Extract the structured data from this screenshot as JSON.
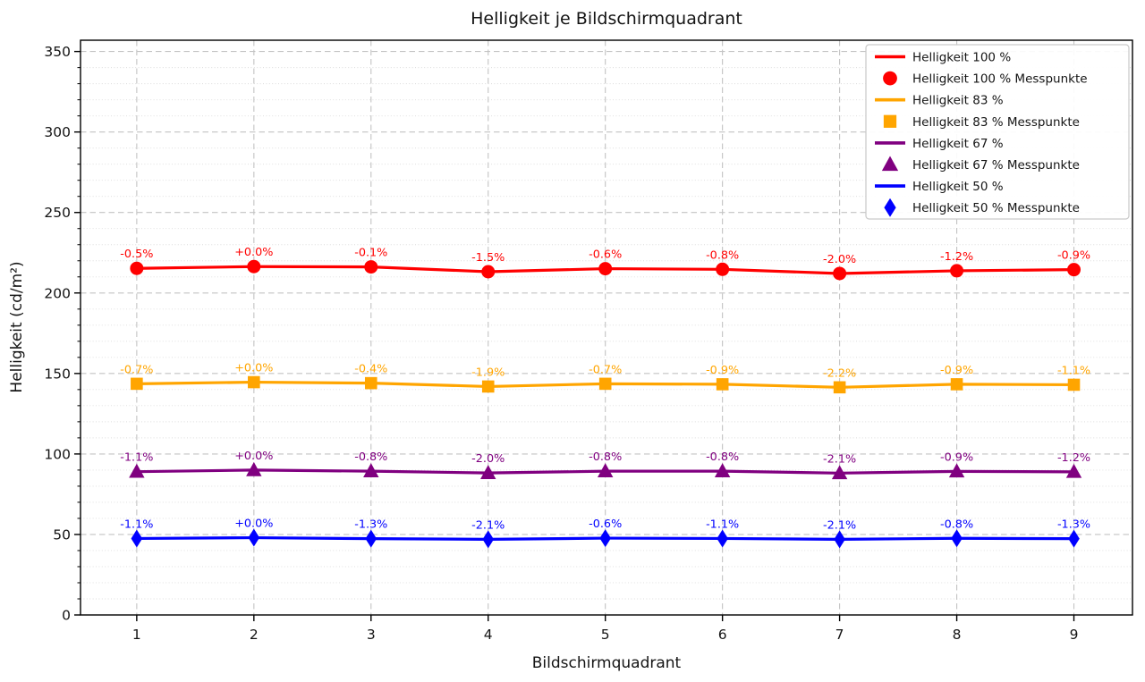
{
  "chart_data": {
    "type": "line",
    "title": "Helligkeit je Bildschirmquadrant",
    "xlabel": "Bildschirmquadrant",
    "ylabel": "Helligkeit (cd/m²)",
    "x": [
      1,
      2,
      3,
      4,
      5,
      6,
      7,
      8,
      9
    ],
    "xticks": [
      1,
      2,
      3,
      4,
      5,
      6,
      7,
      8,
      9
    ],
    "yticks": [
      0,
      50,
      100,
      150,
      200,
      250,
      300,
      350
    ],
    "xlim": [
      0.52,
      9.5
    ],
    "ylim": [
      0,
      357
    ],
    "grid": {
      "major": "dashed",
      "minor_y": "dotted"
    },
    "legend_position": "upper right",
    "series": [
      {
        "name": "Helligkeit 100 %",
        "messpunkte_name": "Helligkeit 100 % Messpunkte",
        "color": "#ff0000",
        "marker": "circle",
        "values": [
          215.3,
          216.4,
          216.2,
          213.2,
          215.1,
          214.7,
          212.1,
          213.8,
          214.5
        ],
        "point_labels": [
          "-0.5%",
          "+0.0%",
          "-0.1%",
          "-1.5%",
          "-0.6%",
          "-0.8%",
          "-2.0%",
          "-1.2%",
          "-0.9%"
        ]
      },
      {
        "name": "Helligkeit 83 %",
        "messpunkte_name": "Helligkeit 83 % Messpunkte",
        "color": "#ffa500",
        "marker": "square",
        "values": [
          143.6,
          144.6,
          144.0,
          141.9,
          143.6,
          143.3,
          141.4,
          143.3,
          143.0
        ],
        "point_labels": [
          "-0.7%",
          "+0.0%",
          "-0.4%",
          "-1.9%",
          "-0.7%",
          "-0.9%",
          "-2.2%",
          "-0.9%",
          "-1.1%"
        ]
      },
      {
        "name": "Helligkeit 67 %",
        "messpunkte_name": "Helligkeit 67 % Messpunkte",
        "color": "#800080",
        "marker": "triangle",
        "values": [
          89.0,
          90.0,
          89.3,
          88.2,
          89.3,
          89.3,
          88.1,
          89.2,
          88.9
        ],
        "point_labels": [
          "-1.1%",
          "+0.0%",
          "-0.8%",
          "-2.0%",
          "-0.8%",
          "-0.8%",
          "-2.1%",
          "-0.9%",
          "-1.2%"
        ]
      },
      {
        "name": "Helligkeit 50 %",
        "messpunkte_name": "Helligkeit 50 % Messpunkte",
        "color": "#0000ff",
        "marker": "diamond",
        "values": [
          47.5,
          48.0,
          47.4,
          47.0,
          47.7,
          47.5,
          47.0,
          47.6,
          47.4
        ],
        "point_labels": [
          "-1.1%",
          "+0.0%",
          "-1.3%",
          "-2.1%",
          "-0.6%",
          "-1.1%",
          "-2.1%",
          "-0.8%",
          "-1.3%"
        ]
      }
    ],
    "legend": {
      "entries": [
        {
          "label": "Helligkeit 100 %",
          "swatch": "line",
          "color": "#ff0000"
        },
        {
          "label": "Helligkeit 100 % Messpunkte",
          "swatch": "circle",
          "color": "#ff0000"
        },
        {
          "label": "Helligkeit 83 %",
          "swatch": "line",
          "color": "#ffa500"
        },
        {
          "label": "Helligkeit 83 % Messpunkte",
          "swatch": "square",
          "color": "#ffa500"
        },
        {
          "label": "Helligkeit 67 %",
          "swatch": "line",
          "color": "#800080"
        },
        {
          "label": "Helligkeit 67 % Messpunkte",
          "swatch": "triangle",
          "color": "#800080"
        },
        {
          "label": "Helligkeit 50 %",
          "swatch": "line",
          "color": "#0000ff"
        },
        {
          "label": "Helligkeit 50 % Messpunkte",
          "swatch": "diamond",
          "color": "#0000ff"
        }
      ]
    },
    "colors": {
      "text": "#141414",
      "spine": "#000000",
      "grid_major": "#c3c3c3",
      "grid_minor": "#dcdcdc",
      "legend_border": "#c9c9c9",
      "background": "#ffffff"
    }
  }
}
